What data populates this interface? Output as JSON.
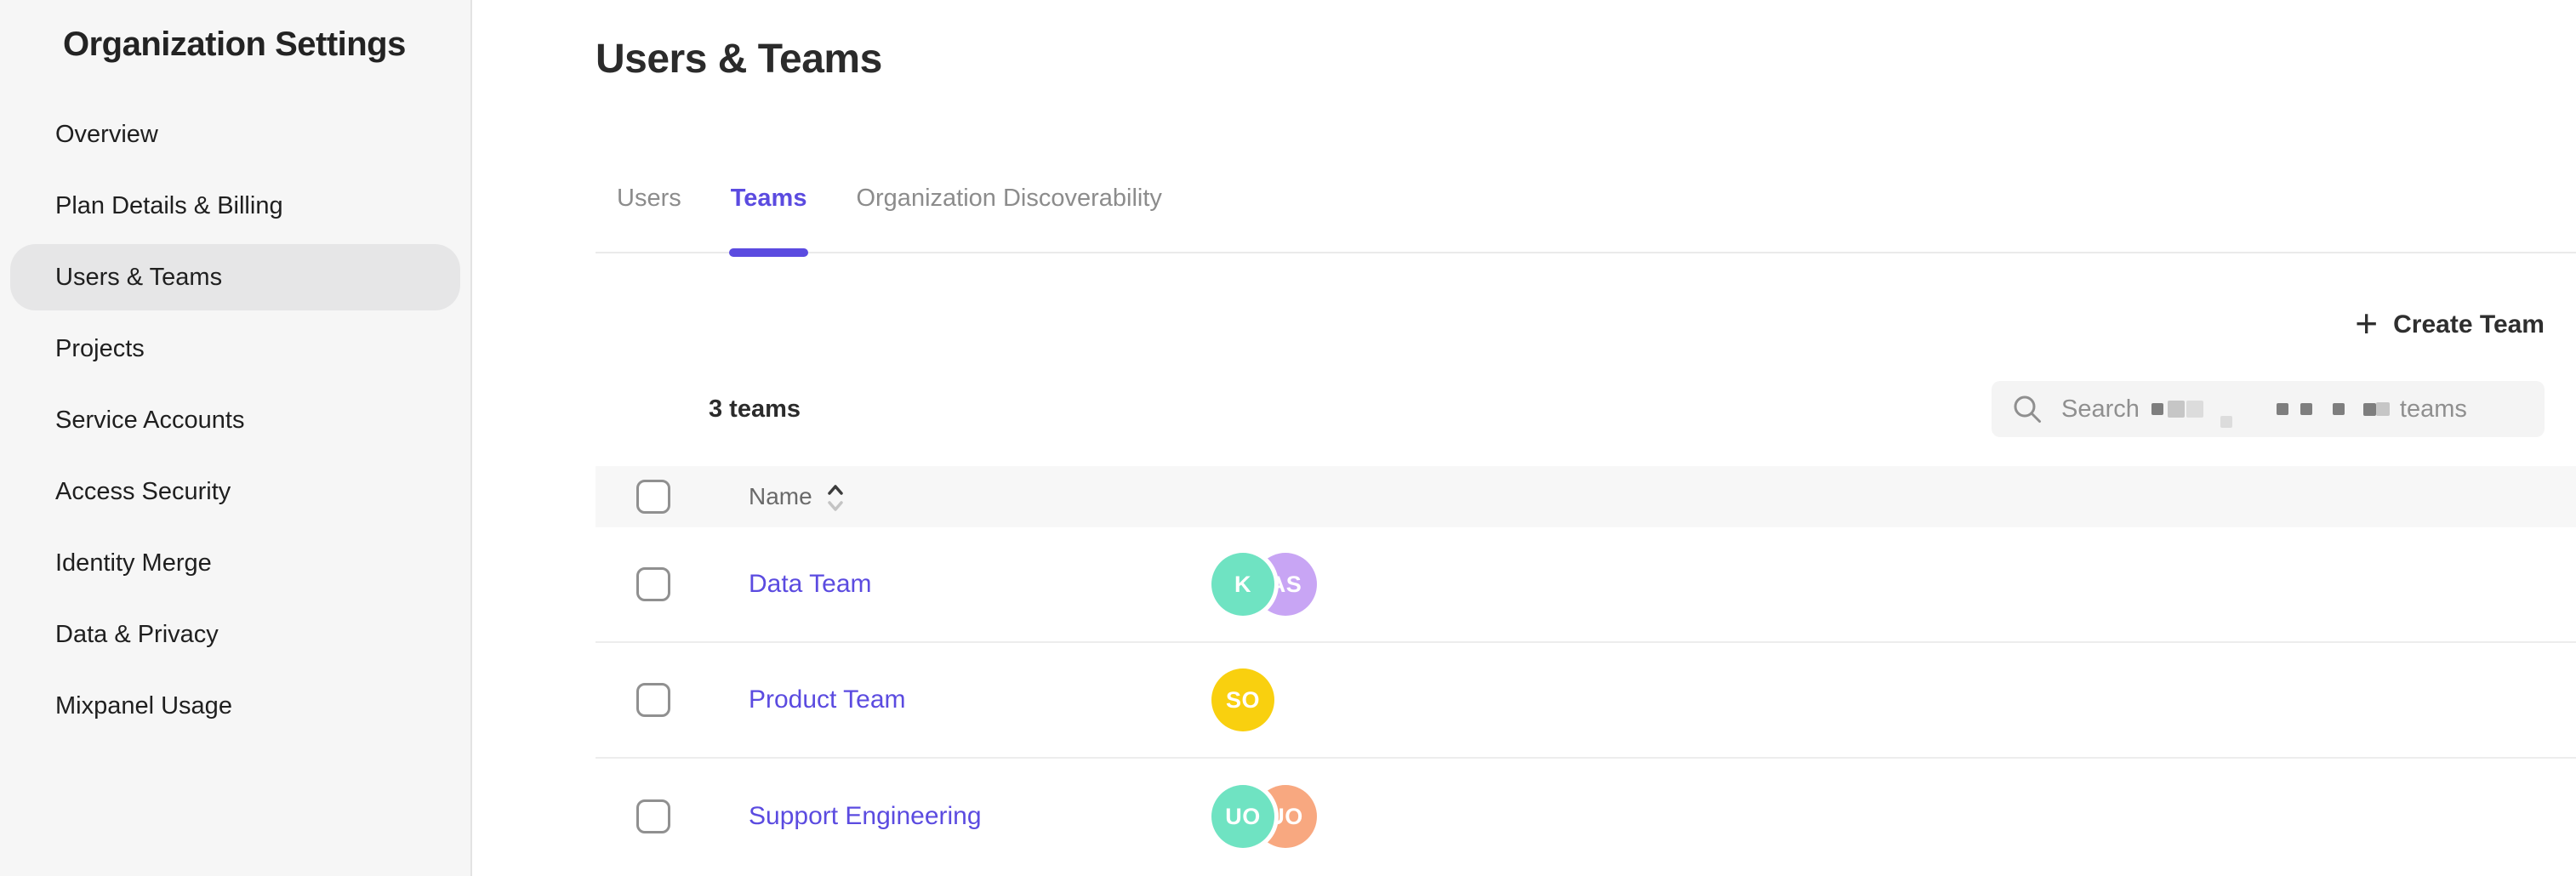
{
  "colors": {
    "accent": "#5b4be0",
    "sidebar-bg": "#f6f6f6",
    "sidebar-selected-bg": "#e6e6e7",
    "sidebar-border": "#e3e3e3",
    "table-header-bg": "#f7f7f7",
    "divider": "#ededed",
    "text-gray": "#8c8c8c",
    "link": "#5b4be0"
  },
  "sidebar": {
    "title": "Organization Settings",
    "items": [
      {
        "label": "Overview",
        "selected": false
      },
      {
        "label": "Plan Details & Billing",
        "selected": false
      },
      {
        "label": "Users & Teams",
        "selected": true
      },
      {
        "label": "Projects",
        "selected": false
      },
      {
        "label": "Service Accounts",
        "selected": false
      },
      {
        "label": "Access Security",
        "selected": false
      },
      {
        "label": "Identity Merge",
        "selected": false
      },
      {
        "label": "Data & Privacy",
        "selected": false
      },
      {
        "label": "Mixpanel Usage",
        "selected": false
      }
    ]
  },
  "header": {
    "title": "Users & Teams"
  },
  "tabs": [
    {
      "label": "Users",
      "active": false
    },
    {
      "label": "Teams",
      "active": true
    },
    {
      "label": "Organization Discoverability",
      "active": false
    }
  ],
  "toolbar": {
    "plus_glyph": "+",
    "create_team_label": "Create Team"
  },
  "search": {
    "prefix": "Search",
    "suffix": "teams",
    "redacted_blocks": [
      {
        "shade": "dark",
        "size": 14,
        "gap": 14
      },
      {
        "shade": "mid",
        "size": 20,
        "gap": 5
      },
      {
        "shade": "light",
        "size": 20,
        "gap": 2
      },
      {
        "shade": "light",
        "size": 14,
        "gap": 20,
        "sub": true
      },
      {
        "shade": "dark",
        "size": 14,
        "gap": 52
      },
      {
        "shade": "dark",
        "size": 14,
        "gap": 14
      },
      {
        "shade": "dark",
        "size": 14,
        "gap": 24
      },
      {
        "shade": "dark",
        "size": 15,
        "gap": 22
      },
      {
        "shade": "mid",
        "size": 16,
        "gap": 0
      }
    ],
    "suffix_gap": 12
  },
  "table": {
    "count_label": "3 teams",
    "columns": [
      {
        "label": "Name",
        "sortable": true
      }
    ],
    "rows": [
      {
        "name": "Data Team",
        "avatars": [
          {
            "initials": "K",
            "color": "#6fe3c2"
          },
          {
            "initials": "AS",
            "color": "#c8a5f4"
          }
        ]
      },
      {
        "name": "Product Team",
        "avatars": [
          {
            "initials": "SO",
            "color": "#f9d00f"
          }
        ]
      },
      {
        "name": "Support Engineering",
        "avatars": [
          {
            "initials": "UO",
            "color": "#6fe3c2"
          },
          {
            "initials": "UO",
            "color": "#f8a880"
          }
        ]
      }
    ]
  }
}
